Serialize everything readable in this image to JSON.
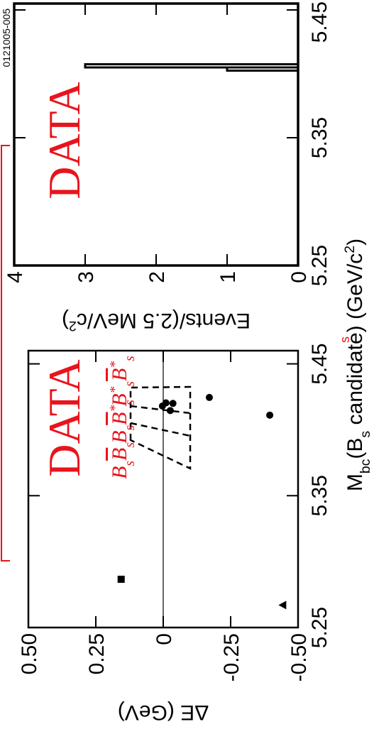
{
  "chart_data": [
    {
      "type": "scatter",
      "xlabel": [
        {
          "text": "M",
          "sub": "bc"
        },
        {
          "text": "(B",
          "sub": "s"
        },
        {
          "text": " candidate) (GeV/c",
          "sup": "2"
        },
        {
          "text": ")"
        }
      ],
      "ylabel": [
        {
          "text": "ΔE (GeV)"
        }
      ],
      "xlim": [
        5.25,
        5.46
      ],
      "xticks": [
        5.25,
        5.35,
        5.45
      ],
      "ylim": [
        -0.5,
        0.5
      ],
      "yticks": [
        {
          "value": 0.5,
          "label": "0.50"
        },
        {
          "value": 0.25,
          "label": "0.25"
        },
        0,
        -0.25,
        {
          "value": -0.5,
          "label": "-0.50"
        }
      ],
      "zero_line": true,
      "series": [
        {
          "marker": "square",
          "color": "#000000",
          "x": [
            5.2866
          ],
          "y": [
            0.156
          ]
        },
        {
          "marker": "triangle",
          "color": "#000000",
          "x": [
            5.267
          ],
          "y": [
            -0.443
          ]
        },
        {
          "marker": "circle",
          "color": "#000000",
          "x": [
            5.418,
            5.4204,
            5.4146,
            5.42,
            5.4245,
            5.4111
          ],
          "y": [
            0.003,
            -0.01,
            -0.026,
            -0.036,
            -0.171,
            -0.395
          ]
        }
      ],
      "annotation": "DATA",
      "annotation_color": "#e8141c",
      "region_labels": [
        [
          {
            "text": "B",
            "sub": "s"
          },
          {
            "text": "B",
            "sub": "s",
            "bar": true
          }
        ],
        [
          {
            "text": "B",
            "sub": "s"
          },
          {
            "text": "B",
            "sup": "*",
            "sub": "s",
            "bar": true
          }
        ],
        [
          {
            "text": "B",
            "sup": "*",
            "sub": "s"
          },
          {
            "text": "B",
            "sup": "*",
            "sub": "s",
            "bar": true
          }
        ]
      ],
      "partial_label": "s"
    },
    {
      "type": "histogram",
      "ylabel": [
        {
          "text": "Events/(2.5 MeV/c",
          "sup": "2"
        },
        {
          "text": ")"
        }
      ],
      "xlim": [
        5.25,
        5.455
      ],
      "xticks": [
        5.25,
        5.35,
        5.45
      ],
      "ylim": [
        0,
        4
      ],
      "yticks": [
        0,
        1,
        2,
        3,
        4
      ],
      "bins": [
        5.4025,
        5.405,
        5.4075
      ],
      "counts": [
        1,
        3
      ],
      "color": "#000000",
      "annotation": "DATA",
      "annotation_color": "#e8141c",
      "id_label": "0121005-005"
    }
  ]
}
